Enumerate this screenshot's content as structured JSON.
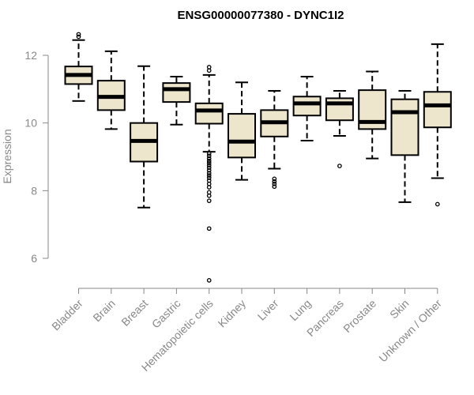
{
  "chart_data": {
    "type": "box",
    "title": "ENSG00000077380 - DYNC1I2",
    "ylabel": "Expression",
    "xlabel": "",
    "ylim": [
      5.2,
      12.9
    ],
    "yticks": [
      6,
      8,
      10,
      12
    ],
    "box_fill": "#ede6cc",
    "categories": [
      "Bladder",
      "Brain",
      "Breast",
      "Gastric",
      "Hematopoietic cells",
      "Kidney",
      "Liver",
      "Lung",
      "Pancreas",
      "Prostate",
      "Skin",
      "Unknown / Other"
    ],
    "boxes": [
      {
        "whisker_low": 10.65,
        "q1": 11.15,
        "median": 11.42,
        "q3": 11.67,
        "whisker_high": 12.45,
        "outliers": [
          12.55,
          12.62
        ]
      },
      {
        "whisker_low": 9.82,
        "q1": 10.38,
        "median": 10.77,
        "q3": 11.25,
        "whisker_high": 12.12,
        "outliers": []
      },
      {
        "whisker_low": 7.5,
        "q1": 8.86,
        "median": 9.47,
        "q3": 10.0,
        "whisker_high": 11.68,
        "outliers": []
      },
      {
        "whisker_low": 9.95,
        "q1": 10.62,
        "median": 11.0,
        "q3": 11.18,
        "whisker_high": 11.37,
        "outliers": []
      },
      {
        "whisker_low": 9.15,
        "q1": 9.98,
        "median": 10.37,
        "q3": 10.58,
        "whisker_high": 11.42,
        "outliers": [
          11.55,
          11.65,
          9.1,
          9.03,
          8.95,
          8.88,
          8.82,
          8.75,
          8.68,
          8.6,
          8.52,
          8.45,
          8.38,
          8.3,
          8.2,
          8.1,
          7.95,
          7.85,
          7.7,
          6.88,
          5.35
        ]
      },
      {
        "whisker_low": 8.32,
        "q1": 8.98,
        "median": 9.45,
        "q3": 10.27,
        "whisker_high": 11.2,
        "outliers": []
      },
      {
        "whisker_low": 8.65,
        "q1": 9.6,
        "median": 10.02,
        "q3": 10.38,
        "whisker_high": 10.95,
        "outliers": [
          8.35,
          8.27,
          8.2,
          8.12
        ]
      },
      {
        "whisker_low": 9.48,
        "q1": 10.22,
        "median": 10.58,
        "q3": 10.78,
        "whisker_high": 11.37,
        "outliers": []
      },
      {
        "whisker_low": 9.62,
        "q1": 10.08,
        "median": 10.58,
        "q3": 10.73,
        "whisker_high": 10.95,
        "outliers": [
          8.73
        ]
      },
      {
        "whisker_low": 8.95,
        "q1": 9.82,
        "median": 10.03,
        "q3": 10.97,
        "whisker_high": 11.52,
        "outliers": []
      },
      {
        "whisker_low": 7.66,
        "q1": 9.05,
        "median": 10.32,
        "q3": 10.7,
        "whisker_high": 10.95,
        "outliers": []
      },
      {
        "whisker_low": 8.37,
        "q1": 9.87,
        "median": 10.52,
        "q3": 10.92,
        "whisker_high": 12.33,
        "outliers": [
          7.6
        ]
      }
    ]
  }
}
